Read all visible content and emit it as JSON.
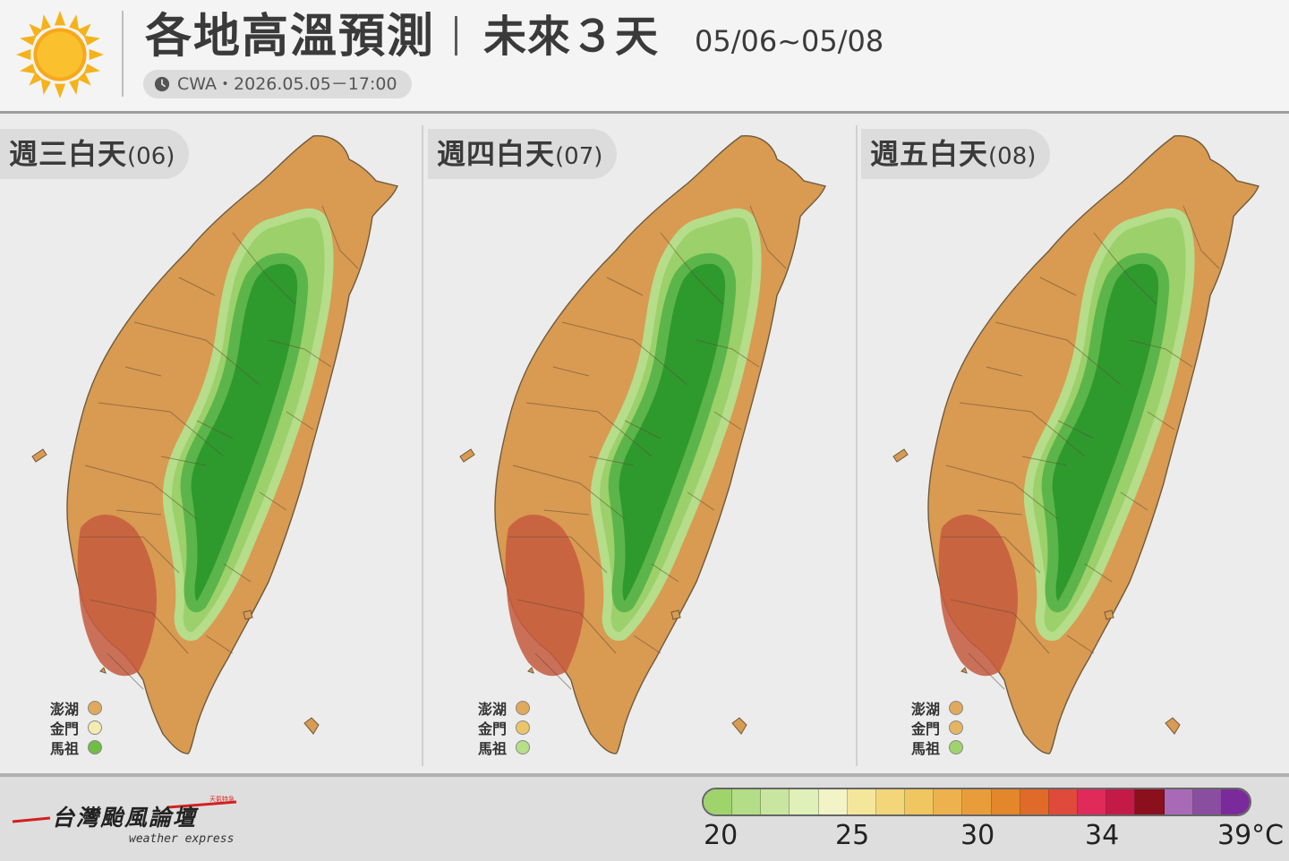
{
  "header": {
    "title": "各地高溫預測",
    "subtitle": "未來３天",
    "date_range": "05/06~05/08",
    "source": "CWA・2026.05.05－17:00",
    "sun_icon": "sun-icon",
    "clock_icon": "clock-icon"
  },
  "panels": [
    {
      "day": "週三白天",
      "num": "(06)",
      "islands": [
        {
          "name": "澎湖",
          "color": "#e1a95b"
        },
        {
          "name": "金門",
          "color": "#f4ebb0"
        },
        {
          "name": "馬祖",
          "color": "#6fbd45"
        }
      ]
    },
    {
      "day": "週四白天",
      "num": "(07)",
      "islands": [
        {
          "name": "澎湖",
          "color": "#e1a95b"
        },
        {
          "name": "金門",
          "color": "#ecc56a"
        },
        {
          "name": "馬祖",
          "color": "#b7df86"
        }
      ]
    },
    {
      "day": "週五白天",
      "num": "(08)",
      "islands": [
        {
          "name": "澎湖",
          "color": "#e1a95b"
        },
        {
          "name": "金門",
          "color": "#e6b562"
        },
        {
          "name": "馬祖",
          "color": "#9fd46c"
        }
      ]
    }
  ],
  "legend": {
    "unit": "°C",
    "ticks": [
      "20",
      "25",
      "30",
      "34",
      "39°C"
    ],
    "colors": [
      "#9fd46c",
      "#b3dd86",
      "#c9e6a0",
      "#dff0b8",
      "#f2f3c6",
      "#f4e79b",
      "#f3d67a",
      "#f0c660",
      "#edb24e",
      "#e99d3a",
      "#e4862a",
      "#e06a2a",
      "#e04a3a",
      "#e02a5a",
      "#c41a48",
      "#8c0f1e",
      "#a86ab6",
      "#8a4ea0",
      "#7a2a9a"
    ]
  },
  "brand": {
    "name": "台灣颱風論壇",
    "en": "weather express",
    "tag": "天氣特急"
  }
}
